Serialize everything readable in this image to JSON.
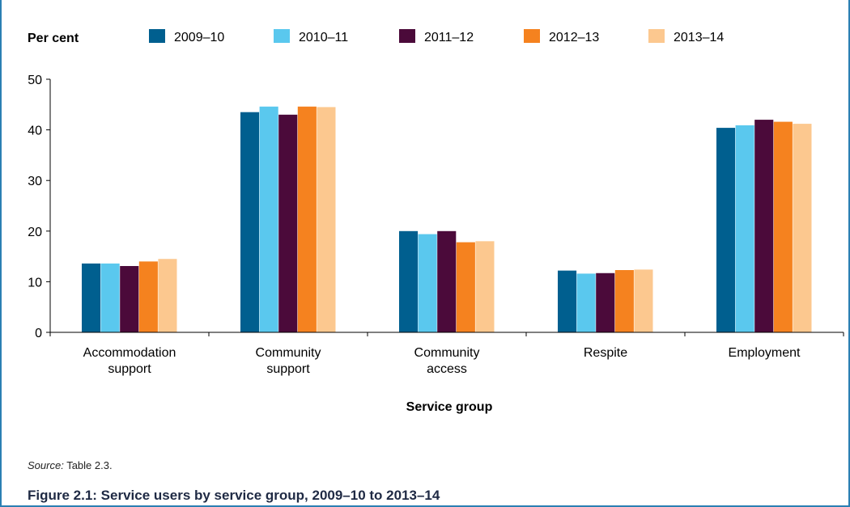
{
  "chart_data": {
    "type": "bar",
    "ylabel": "Per cent",
    "xlabel": "Service group",
    "ylim": [
      0,
      50
    ],
    "yticks": [
      0,
      10,
      20,
      30,
      40,
      50
    ],
    "grid": false,
    "legend_position": "top",
    "categories": [
      [
        "Accommodation",
        "support"
      ],
      [
        "Community",
        "support"
      ],
      [
        "Community",
        "access"
      ],
      [
        "Respite"
      ],
      [
        "Employment"
      ]
    ],
    "series": [
      {
        "name": "2009–10",
        "color": "#005f8f",
        "values": [
          13.6,
          43.5,
          20.0,
          12.2,
          40.4
        ]
      },
      {
        "name": "2010–11",
        "color": "#5ac8ee",
        "values": [
          13.6,
          44.6,
          19.4,
          11.6,
          40.9
        ]
      },
      {
        "name": "2011–12",
        "color": "#4b0a3a",
        "values": [
          13.1,
          43.0,
          20.0,
          11.7,
          42.0
        ]
      },
      {
        "name": "2012–13",
        "color": "#f5821f",
        "values": [
          14.0,
          44.6,
          17.8,
          12.3,
          41.6
        ]
      },
      {
        "name": "2013–14",
        "color": "#fcc88f",
        "values": [
          14.5,
          44.5,
          18.0,
          12.4,
          41.2
        ]
      }
    ]
  },
  "source": {
    "label": "Source:",
    "text": " Table 2.3."
  },
  "caption": "Figure 2.1: Service users by service group, 2009–10 to 2013–14"
}
